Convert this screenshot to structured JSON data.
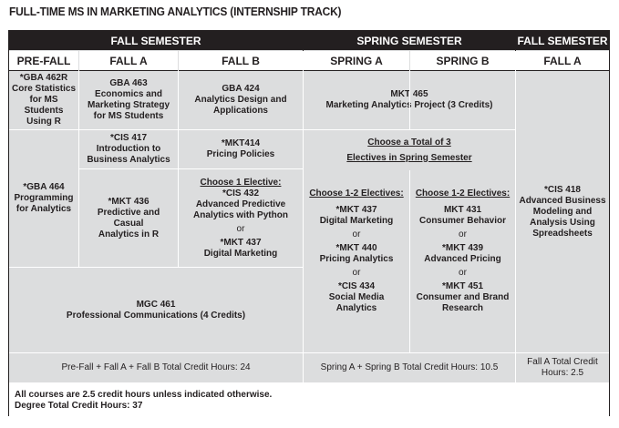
{
  "title": "FULL-TIME MS IN MARKETING ANALYTICS (INTERNSHIP TRACK)",
  "headers": {
    "fall_semester": "FALL SEMESTER",
    "spring_semester": "SPRING SEMESTER",
    "fall_semester_2": "FALL SEMESTER",
    "pre_fall": "PRE-FALL",
    "fall_a": "FALL A",
    "fall_b": "FALL B",
    "spring_a": "SPRING A",
    "spring_b": "SPRING B",
    "fall_a_2": "FALL A"
  },
  "courses": {
    "gba462r": [
      "*GBA 462R",
      "Core Statistics",
      "for MS",
      "Students",
      "Using R"
    ],
    "gba463": [
      "GBA 463",
      "Economics and",
      "Marketing Strategy",
      "for MS Students"
    ],
    "gba424": [
      "GBA 424",
      "Analytics Design and",
      "Applications"
    ],
    "mkt465": [
      "MKT 465",
      "Marketing Analytics Project (3 Credits)"
    ],
    "gba464": [
      "*GBA 464",
      "Programming",
      "for Analytics"
    ],
    "cis417": [
      "*CIS 417",
      "Introduction to",
      "Business Analytics"
    ],
    "mkt414": [
      "*MKT414",
      "Pricing Policies"
    ],
    "mkt436": [
      "*MKT 436",
      "Predictive and",
      "Casual",
      "Analytics in R"
    ],
    "fall_b_elective": {
      "heading": "Choose 1 Elective:",
      "option1": [
        "*CIS 432",
        "Advanced Predictive",
        "Analytics with Python"
      ],
      "or": "or",
      "option2": [
        "*MKT 437",
        "Digital Marketing"
      ]
    },
    "spring_electives": {
      "heading_line1": "Choose a Total of 3",
      "heading_line2": "Electives in Spring Semester",
      "spring_a": {
        "heading": "Choose 1-2 Electives:",
        "opt1": [
          "*MKT 437",
          "Digital Marketing"
        ],
        "opt2": [
          "*MKT 440",
          "Pricing Analytics"
        ],
        "opt3": [
          "*CIS 434",
          "Social Media",
          "Analytics"
        ]
      },
      "spring_b": {
        "heading": "Choose 1-2 Electives:",
        "opt1": [
          "MKT 431",
          "Consumer Behavior"
        ],
        "opt2": [
          "*MKT 439",
          "Advanced Pricing"
        ],
        "opt3": [
          "*MKT 451",
          "Consumer and Brand",
          "Research"
        ]
      },
      "or": "or"
    },
    "cis418": [
      "*CIS 418",
      "Advanced Business",
      "Modeling and",
      "Analysis Using",
      "Spreadsheets"
    ],
    "mgc461": [
      "MGC 461",
      "Professional Communications (4 Credits)"
    ]
  },
  "totals": {
    "fall": "Pre-Fall + Fall A + Fall B Total Credit Hours: 24",
    "spring": "Spring A + Spring B Total Credit Hours: 10.5",
    "fall_a_2": [
      "Fall A Total Credit",
      "Hours: 2.5"
    ]
  },
  "notes": {
    "line1": "All courses are 2.5 credit hours unless indicated otherwise.",
    "line2": "Degree Total Credit Hours: 37"
  }
}
